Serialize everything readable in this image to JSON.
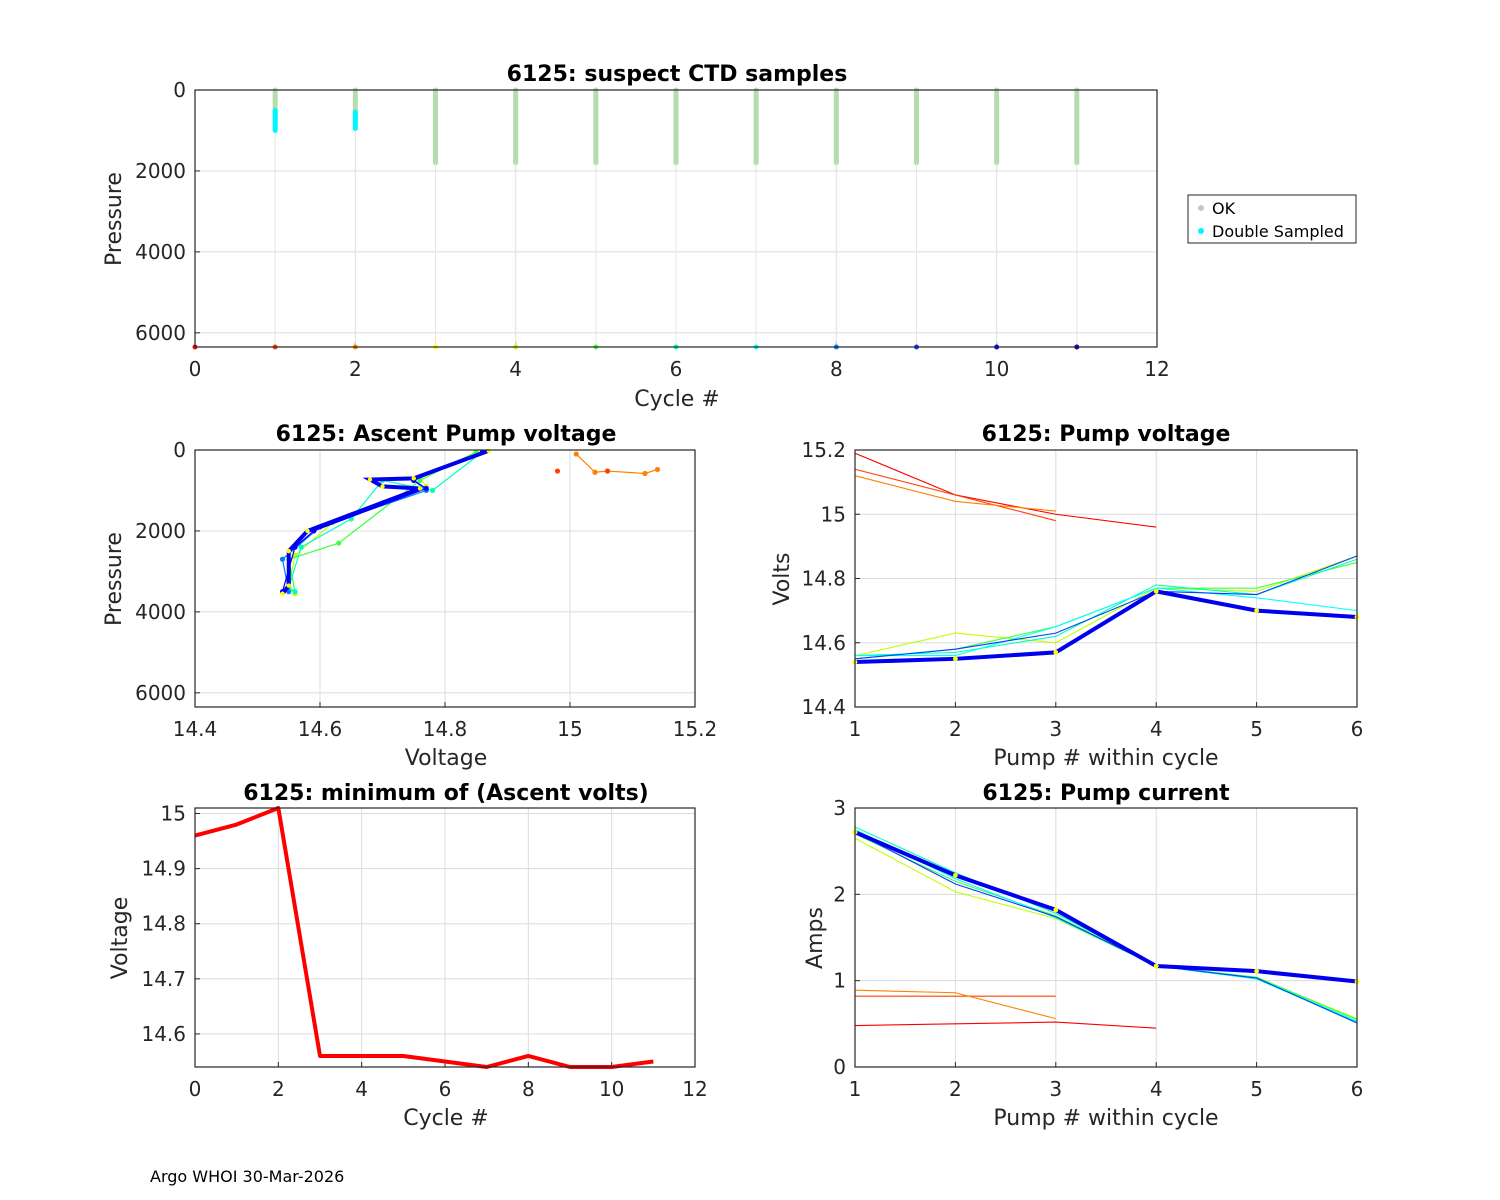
{
  "footer": "Argo WHOI 30-Mar-2026",
  "colors": {
    "ok": "#c7c7c7",
    "ok_bar": "#b5dcac",
    "double": "#00f5ff",
    "min_line": "#ff0000",
    "cycle_palette": [
      "#ff0000",
      "#ff4000",
      "#ff8000",
      "#ffff00",
      "#bfff00",
      "#40ff40",
      "#00ffbf",
      "#00ffff",
      "#0080ff",
      "#0040ff",
      "#0000ff",
      "#0000c0"
    ]
  },
  "chart_data": [
    {
      "id": "suspect",
      "type": "scatter",
      "title": "6125: suspect CTD samples",
      "xlabel": "Cycle #",
      "ylabel": "Pressure",
      "xlim": [
        0,
        12
      ],
      "ylim": [
        6350,
        0
      ],
      "xticks": [
        0,
        2,
        4,
        6,
        8,
        10,
        12
      ],
      "yticks": [
        0,
        2000,
        4000,
        6000
      ],
      "legend": {
        "position": "right",
        "entries": [
          "OK",
          "Double Sampled"
        ]
      },
      "ok_profiles": [
        {
          "cycle": 1,
          "pmin": 0,
          "pmax": 700
        },
        {
          "cycle": 2,
          "pmin": 0,
          "pmax": 700
        },
        {
          "cycle": 3,
          "pmin": 0,
          "pmax": 1800
        },
        {
          "cycle": 4,
          "pmin": 0,
          "pmax": 1800
        },
        {
          "cycle": 5,
          "pmin": 0,
          "pmax": 1800
        },
        {
          "cycle": 6,
          "pmin": 0,
          "pmax": 1800
        },
        {
          "cycle": 7,
          "pmin": 0,
          "pmax": 1800
        },
        {
          "cycle": 8,
          "pmin": 0,
          "pmax": 1800
        },
        {
          "cycle": 9,
          "pmin": 0,
          "pmax": 1800
        },
        {
          "cycle": 10,
          "pmin": 0,
          "pmax": 1800
        },
        {
          "cycle": 11,
          "pmin": 0,
          "pmax": 1800
        }
      ],
      "double_sampled": [
        {
          "cycle": 1,
          "pmin": 500,
          "pmax": 1000
        },
        {
          "cycle": 2,
          "pmin": 550,
          "pmax": 950
        }
      ],
      "cycle_markers": {
        "pressure": 6350,
        "cycles": [
          0,
          1,
          2,
          3,
          4,
          5,
          6,
          7,
          8,
          9,
          10,
          11
        ]
      }
    },
    {
      "id": "ascent",
      "type": "line",
      "title": "6125: Ascent Pump voltage",
      "xlabel": "Voltage",
      "ylabel": "Pressure",
      "xlim": [
        14.4,
        15.2
      ],
      "ylim": [
        6350,
        0
      ],
      "xticks": [
        14.4,
        14.6,
        14.8,
        15.0,
        15.2
      ],
      "xticklabels": [
        "14.4",
        "14.6",
        "14.8",
        "15",
        "15.2"
      ],
      "yticks": [
        0,
        2000,
        4000,
        6000
      ],
      "series": [
        {
          "cycle": 2,
          "points": [
            [
              15.01,
              100
            ],
            [
              15.04,
              550
            ],
            [
              15.06,
              520
            ],
            [
              15.12,
              580
            ],
            [
              15.14,
              480
            ]
          ]
        },
        {
          "cycle": 4,
          "points": [
            [
              14.85,
              50
            ],
            [
              14.76,
              700
            ],
            [
              14.77,
              900
            ],
            [
              14.62,
              1800
            ],
            [
              14.56,
              2600
            ],
            [
              14.55,
              3400
            ],
            [
              14.56,
              3550
            ]
          ]
        },
        {
          "cycle": 5,
          "points": [
            [
              14.85,
              50
            ],
            [
              14.76,
              750
            ],
            [
              14.63,
              2300
            ],
            [
              14.55,
              2700
            ],
            [
              14.56,
              3500
            ]
          ]
        },
        {
          "cycle": 6,
          "points": [
            [
              14.86,
              50
            ],
            [
              14.78,
              1000
            ],
            [
              14.7,
              750
            ],
            [
              14.65,
              1700
            ],
            [
              14.57,
              2400
            ],
            [
              14.55,
              3400
            ],
            [
              14.56,
              3500
            ]
          ]
        },
        {
          "cycle": 8,
          "points": [
            [
              14.86,
              50
            ],
            [
              14.75,
              750
            ],
            [
              14.77,
              1000
            ],
            [
              14.6,
              1900
            ],
            [
              14.54,
              2700
            ],
            [
              14.55,
              3500
            ]
          ]
        },
        {
          "cycle": 10,
          "points": [
            [
              14.86,
              50
            ],
            [
              14.75,
              750
            ],
            [
              14.77,
              950
            ],
            [
              14.59,
              2000
            ],
            [
              14.56,
              2400
            ],
            [
              14.54,
              3500
            ]
          ]
        },
        {
          "cycle": 11,
          "highlight": true,
          "points": [
            [
              14.87,
              20
            ],
            [
              14.75,
              700
            ],
            [
              14.68,
              730
            ],
            [
              14.7,
              900
            ],
            [
              14.76,
              950
            ],
            [
              14.58,
              2000
            ],
            [
              14.55,
              2500
            ],
            [
              14.55,
              3350
            ],
            [
              14.54,
              3550
            ]
          ]
        }
      ],
      "isolated_points": [
        {
          "cycle": 1,
          "points": [
            [
              14.98,
              520
            ],
            [
              15.06,
              520
            ]
          ]
        }
      ]
    },
    {
      "id": "pumpv",
      "type": "line",
      "title": "6125: Pump voltage",
      "xlabel": "Pump # within cycle",
      "ylabel": "Volts",
      "xlim": [
        1,
        6
      ],
      "ylim": [
        14.4,
        15.2
      ],
      "xticks": [
        1,
        2,
        3,
        4,
        5,
        6
      ],
      "yticks": [
        14.4,
        14.6,
        14.8,
        15.0,
        15.2
      ],
      "yticklabels": [
        "14.4",
        "14.6",
        "14.8",
        "15",
        "15.2"
      ],
      "series": [
        {
          "cycle": 0,
          "values": [
            15.19,
            15.06,
            15.0,
            14.96
          ]
        },
        {
          "cycle": 1,
          "values": [
            15.14,
            15.06,
            14.98
          ]
        },
        {
          "cycle": 2,
          "values": [
            15.12,
            15.04,
            15.01
          ]
        },
        {
          "cycle": 4,
          "values": [
            14.56,
            14.63,
            14.6,
            14.77,
            14.76,
            14.87
          ]
        },
        {
          "cycle": 5,
          "values": [
            14.55,
            14.58,
            14.65,
            14.77,
            14.77,
            14.85
          ]
        },
        {
          "cycle": 6,
          "values": [
            14.56,
            14.57,
            14.62,
            14.78,
            14.75,
            14.86
          ]
        },
        {
          "cycle": 7,
          "values": [
            14.56,
            14.56,
            14.65,
            14.77,
            14.74,
            14.7
          ]
        },
        {
          "cycle": 9,
          "values": [
            14.55,
            14.58,
            14.63,
            14.76,
            14.75,
            14.87
          ]
        },
        {
          "cycle": 11,
          "highlight": true,
          "values": [
            14.54,
            14.55,
            14.57,
            14.76,
            14.7,
            14.68
          ]
        }
      ]
    },
    {
      "id": "minv",
      "type": "line",
      "title": "6125: minimum of (Ascent volts)",
      "xlabel": "Cycle #",
      "ylabel": "Voltage",
      "xlim": [
        0,
        12
      ],
      "ylim": [
        14.54,
        15.01
      ],
      "xticks": [
        0,
        2,
        4,
        6,
        8,
        10,
        12
      ],
      "yticks": [
        14.6,
        14.7,
        14.8,
        14.9,
        15.0
      ],
      "yticklabels": [
        "14.6",
        "14.7",
        "14.8",
        "14.9",
        "15"
      ],
      "x": [
        0,
        1,
        2,
        3,
        4,
        5,
        6,
        7,
        8,
        9,
        10,
        11
      ],
      "values": [
        14.96,
        14.98,
        15.01,
        14.56,
        14.56,
        14.56,
        14.55,
        14.54,
        14.56,
        14.54,
        14.54,
        14.55
      ]
    },
    {
      "id": "pumpc",
      "type": "line",
      "title": "6125: Pump current",
      "xlabel": "Pump # within cycle",
      "ylabel": "Amps",
      "xlim": [
        1,
        6
      ],
      "ylim": [
        0,
        3
      ],
      "xticks": [
        1,
        2,
        3,
        4,
        5,
        6
      ],
      "yticks": [
        0,
        1,
        2,
        3
      ],
      "series": [
        {
          "cycle": 0,
          "values": [
            0.48,
            0.5,
            0.52,
            0.45
          ]
        },
        {
          "cycle": 1,
          "values": [
            0.82,
            0.82,
            0.82
          ]
        },
        {
          "cycle": 2,
          "values": [
            0.89,
            0.86,
            0.56
          ]
        },
        {
          "cycle": 4,
          "values": [
            2.65,
            2.03,
            1.72,
            1.17,
            1.03,
            0.56
          ]
        },
        {
          "cycle": 5,
          "values": [
            2.7,
            2.15,
            1.75,
            1.17,
            1.04,
            0.55
          ]
        },
        {
          "cycle": 6,
          "values": [
            2.78,
            2.25,
            1.78,
            1.17,
            1.03,
            0.53
          ]
        },
        {
          "cycle": 7,
          "values": [
            2.75,
            2.18,
            1.73,
            1.17,
            1.02,
            0.52
          ]
        },
        {
          "cycle": 9,
          "values": [
            2.72,
            2.12,
            1.74,
            1.17,
            1.03,
            0.51
          ]
        },
        {
          "cycle": 11,
          "highlight": true,
          "values": [
            2.72,
            2.22,
            1.82,
            1.17,
            1.11,
            0.99
          ]
        }
      ]
    }
  ]
}
